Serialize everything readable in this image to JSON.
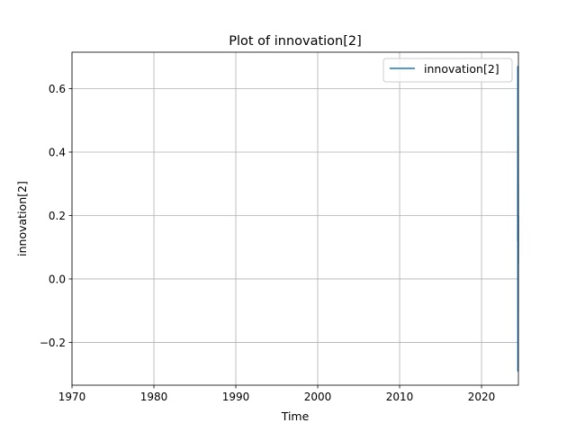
{
  "chart_data": {
    "type": "line",
    "title": "Plot of innovation[2]",
    "xlabel": "Time",
    "ylabel": "innovation[2]",
    "xlim": [
      1970,
      2024.5
    ],
    "ylim": [
      -0.335,
      0.715
    ],
    "x_ticks": [
      1970,
      1980,
      1990,
      2000,
      2010,
      2020
    ],
    "x_tick_labels": [
      "1970",
      "1980",
      "1990",
      "2000",
      "2010",
      "2020"
    ],
    "y_ticks": [
      -0.2,
      0.0,
      0.2,
      0.4,
      0.6
    ],
    "y_tick_labels": [
      "−0.2",
      "0.0",
      "0.2",
      "0.4",
      "0.6"
    ],
    "grid": true,
    "legend_position": "upper-right",
    "series": [
      {
        "name": "innovation[2]",
        "color": "#1f77b4",
        "x": [
          2024.42,
          2024.43,
          2024.44,
          2024.45,
          2024.46,
          2024.47,
          2024.48,
          2024.49
        ],
        "y": [
          0.12,
          0.67,
          -0.29,
          0.45,
          -0.1,
          0.3,
          0.05,
          0.2
        ]
      }
    ]
  }
}
